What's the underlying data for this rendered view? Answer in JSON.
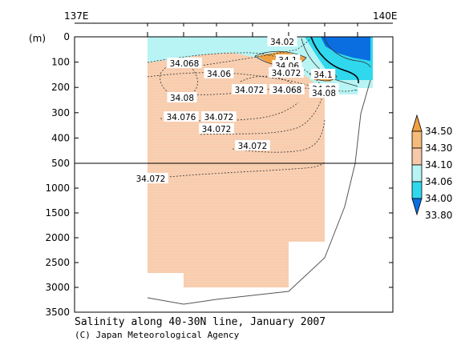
{
  "chart_data": {
    "type": "heatmap",
    "title": "Salinity along 40-30N line, January 2007",
    "credit": "(C) Japan Meteorological Agency",
    "unit_label": "(m)",
    "x_axis": {
      "ticks": [
        "137E",
        "140E"
      ]
    },
    "y_axis": {
      "upper_ticks": [
        0,
        100,
        200,
        300,
        400,
        500
      ],
      "lower_ticks": [
        1000,
        1500,
        2000,
        2500,
        3000,
        3500
      ],
      "break_at": 500
    },
    "colorbar": {
      "levels": [
        "34.50",
        "34.30",
        "34.10",
        "34.06",
        "34.00",
        "33.80"
      ],
      "colors": [
        "#f0a040",
        "#f5bb7a",
        "#f7c9a8",
        "#b8f4f4",
        "#30d8ee",
        "#0a6ee0"
      ]
    },
    "contour_labels": [
      "34.02",
      "34.068",
      "34.1",
      "34.06",
      "34.06",
      "34.072",
      "34.1",
      "34.08",
      "34.072",
      "34.068",
      "34.08",
      "34.08",
      "34.076",
      "34.072",
      "34.072",
      "34.072",
      "34.072"
    ]
  }
}
